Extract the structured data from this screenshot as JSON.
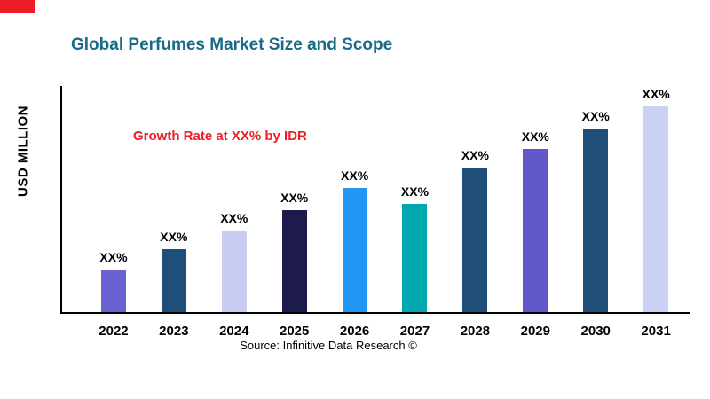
{
  "page": {
    "source": "Source: Infinitive Data Research ©"
  },
  "colors": {
    "title": "#176B87",
    "annotation": "#EE1C25",
    "corner_flag": "#EE1C25",
    "axis": "#000000"
  },
  "chart_data": {
    "type": "bar",
    "title": "Global Perfumes Market Size and Scope",
    "xlabel": "",
    "ylabel": "USD MILLION",
    "annotation": "Growth Rate at XX% by IDR",
    "categories": [
      "2022",
      "2023",
      "2024",
      "2025",
      "2026",
      "2027",
      "2028",
      "2029",
      "2030",
      "2031"
    ],
    "values": [
      19,
      28,
      36,
      45,
      55,
      48,
      64,
      72,
      81,
      91
    ],
    "bar_labels": [
      "XX%",
      "XX%",
      "XX%",
      "XX%",
      "XX%",
      "XX%",
      "XX%",
      "XX%",
      "XX%",
      "XX%"
    ],
    "bar_colors": [
      "#6A62D2",
      "#1F4E79",
      "#C8CCF2",
      "#1C1B4B",
      "#2196F3",
      "#00A6B0",
      "#1F4E79",
      "#6157C9",
      "#1F4E79",
      "#CBD0F5"
    ],
    "ylim": [
      0,
      100
    ],
    "grid": false,
    "legend": false,
    "y_tick_labels_visible": false
  }
}
